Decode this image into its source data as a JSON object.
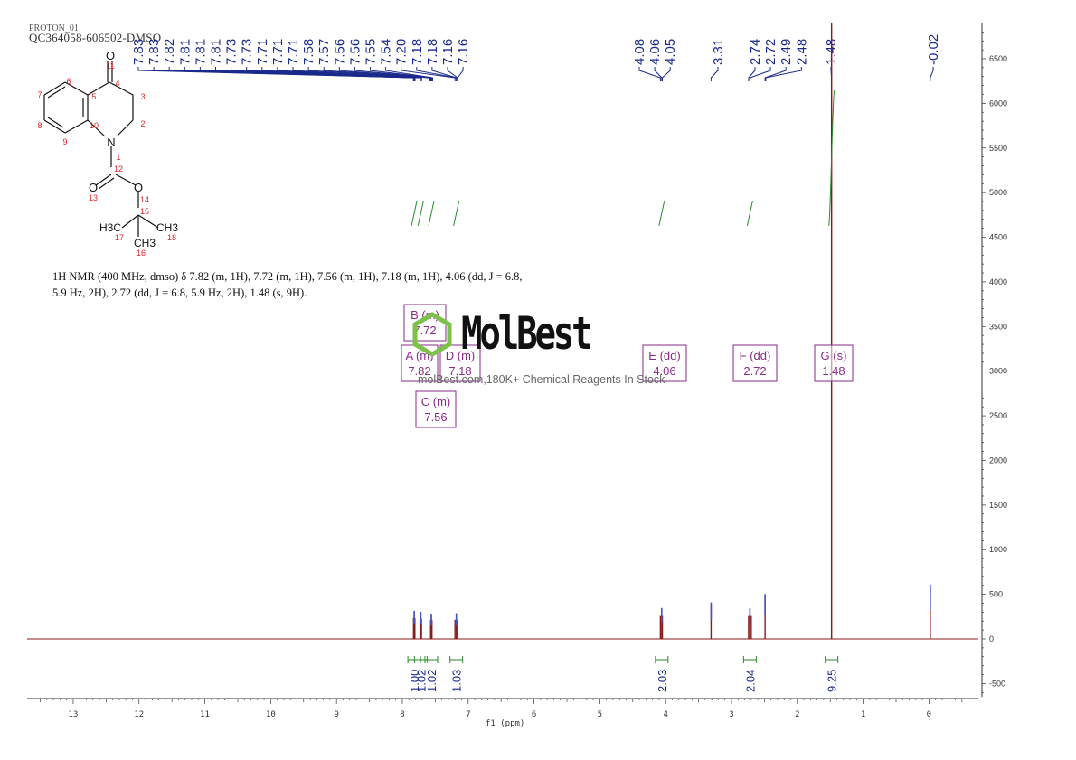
{
  "header": {
    "sample_id": "QC364058-606502-DMSO",
    "experiment": "PROTON_01"
  },
  "molecule": {
    "atoms": {
      "O11": "O",
      "N1": "N",
      "O13": "O",
      "O14": "O",
      "H3C": "H3C",
      "CH3_right": "CH3",
      "CH3_bottom": "CH3"
    },
    "numbers": [
      "11",
      "4",
      "3",
      "2",
      "1",
      "10",
      "5",
      "6",
      "7",
      "8",
      "9",
      "12",
      "13",
      "14",
      "15",
      "17",
      "18",
      "16"
    ]
  },
  "nmr_text": {
    "line1": "1H NMR (400 MHz, dmso) δ 7.82 (m, 1H), 7.72 (m, 1H), 7.56 (m, 1H), 7.18 (m, 1H), 4.06 (dd, J = 6.8,",
    "line2": "5.9 Hz, 2H), 2.72 (dd, J = 6.8, 5.9 Hz, 2H), 1.48 (s, 9H)."
  },
  "watermark": {
    "brand": "MolBest",
    "tagline": "molBest.com,180K+ Chemical Reagents In Stock"
  },
  "chart_data": {
    "type": "line",
    "title": "",
    "xlabel": "f1 (ppm)",
    "ylabel": "",
    "xlim": [
      13.7,
      -0.75
    ],
    "ylim": [
      -650,
      6900
    ],
    "x_ticks": [
      13,
      12,
      11,
      10,
      9,
      8,
      7,
      6,
      5,
      4,
      3,
      2,
      1,
      0
    ],
    "y_ticks": [
      -500,
      0,
      500,
      1000,
      1500,
      2000,
      2500,
      3000,
      3500,
      4000,
      4500,
      5000,
      5500,
      6000,
      6500
    ],
    "series": [
      {
        "peaks": [
          {
            "ppm": 7.82,
            "height": 300
          },
          {
            "ppm": 7.72,
            "height": 290
          },
          {
            "ppm": 7.56,
            "height": 270
          },
          {
            "ppm": 7.18,
            "height": 275
          },
          {
            "ppm": 4.06,
            "height": 330
          },
          {
            "ppm": 3.31,
            "height": 390
          },
          {
            "ppm": 2.72,
            "height": 330
          },
          {
            "ppm": 2.49,
            "height": 480
          },
          {
            "ppm": 1.48,
            "height": 6900
          },
          {
            "ppm": -0.02,
            "height": 580
          }
        ]
      }
    ],
    "peak_labels": [
      "7.83",
      "7.83",
      "7.82",
      "7.81",
      "7.81",
      "7.81",
      "7.73",
      "7.73",
      "7.71",
      "7.71",
      "7.71",
      "7.58",
      "7.57",
      "7.56",
      "7.56",
      "7.55",
      "7.54",
      "7.20",
      "7.18",
      "7.18",
      "7.16",
      "7.16",
      "4.08",
      "4.06",
      "4.05",
      "3.31",
      "2.74",
      "2.72",
      "2.49",
      "2.48",
      "1.48",
      "-0.02"
    ],
    "multiplets": [
      {
        "label": "A (m)",
        "shift": "7.82"
      },
      {
        "label": "B (m)",
        "shift": "7.72"
      },
      {
        "label": "C (m)",
        "shift": "7.56"
      },
      {
        "label": "D (m)",
        "shift": "7.18"
      },
      {
        "label": "E (dd)",
        "shift": "4.06"
      },
      {
        "label": "F (dd)",
        "shift": "2.72"
      },
      {
        "label": "G (s)",
        "shift": "1.48"
      }
    ],
    "integrals": [
      {
        "ppm": 7.82,
        "value": "1.00"
      },
      {
        "ppm": 7.72,
        "value": "1.02"
      },
      {
        "ppm": 7.56,
        "value": "1.02"
      },
      {
        "ppm": 7.18,
        "value": "1.03"
      },
      {
        "ppm": 4.06,
        "value": "2.03"
      },
      {
        "ppm": 2.72,
        "value": "2.04"
      },
      {
        "ppm": 1.48,
        "value": "9.25"
      }
    ],
    "colors": {
      "spectrum": "#8b1a1a",
      "peak_labels": "#1a2a8c",
      "multiplet_box": "#8a2a8a",
      "integral": "#2a8a2a"
    }
  }
}
